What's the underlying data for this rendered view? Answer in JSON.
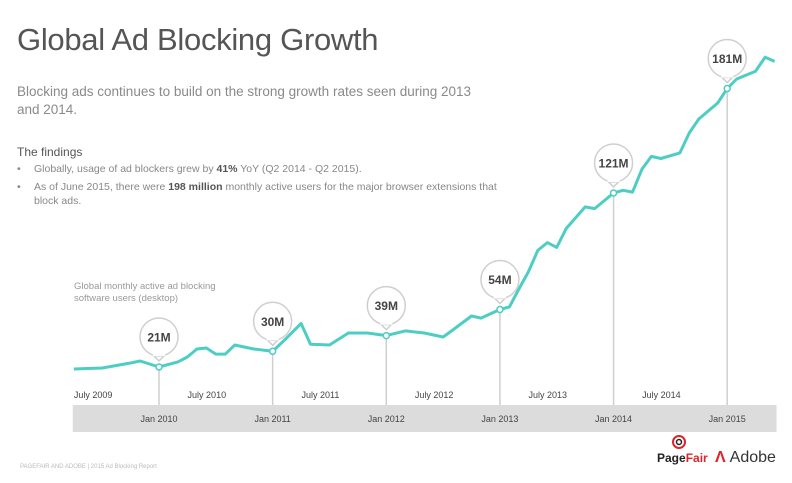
{
  "title": "Global Ad Blocking Growth",
  "subtitle": "Blocking ads continues to build on the strong growth rates seen during 2013 and 2014.",
  "findings": {
    "heading": "The findings",
    "items": [
      {
        "pre": "Globally, usage of ad blockers grew by ",
        "bold": "41%",
        "post": " YoY (Q2 2014 - Q2 2015)."
      },
      {
        "pre": "As of June 2015, there were ",
        "bold": "198 million",
        "post": " monthly active users for the major browser extensions that block ads."
      }
    ]
  },
  "footer": "PAGEFAIR AND ADOBE | 2015 Ad Blocking Report",
  "logos": {
    "pagefair_a": "Page",
    "pagefair_b": "Fair",
    "adobe": "Adobe"
  },
  "colors": {
    "line": "#4ecdc4",
    "band": "#dcdcdc",
    "callout": "#cfcfcf"
  },
  "chart_data": {
    "type": "line",
    "title": "",
    "series_label": "Global monthly active ad blocking software users (desktop)",
    "xlim": [
      "2009-04",
      "2015-06"
    ],
    "ylim": [
      0,
      200
    ],
    "unit": "M",
    "grid": false,
    "x_ticks_top": [
      "July 2009",
      "July 2010",
      "July 2011",
      "July 2012",
      "July 2013",
      "July 2014"
    ],
    "x_ticks_bottom": [
      "Jan 2010",
      "Jan 2011",
      "Jan 2012",
      "Jan 2013",
      "Jan 2014",
      "Jan 2015"
    ],
    "callouts": [
      {
        "date": "2010-01",
        "value": 21,
        "label": "21M"
      },
      {
        "date": "2011-01",
        "value": 30,
        "label": "30M"
      },
      {
        "date": "2012-01",
        "value": 39,
        "label": "39M"
      },
      {
        "date": "2013-01",
        "value": 54,
        "label": "54M"
      },
      {
        "date": "2014-01",
        "value": 121,
        "label": "121M"
      },
      {
        "date": "2015-01",
        "value": 181,
        "label": "181M"
      }
    ],
    "points": [
      [
        "2009-04",
        19.8
      ],
      [
        "2009-07",
        20.4
      ],
      [
        "2009-10",
        23.3
      ],
      [
        "2009-11",
        24.4
      ],
      [
        "2010-01",
        21
      ],
      [
        "2010-03",
        23.9
      ],
      [
        "2010-04",
        26.7
      ],
      [
        "2010-05",
        31.3
      ],
      [
        "2010-06",
        31.9
      ],
      [
        "2010-07",
        28.4
      ],
      [
        "2010-08",
        28.4
      ],
      [
        "2010-09",
        33.6
      ],
      [
        "2010-11",
        31.3
      ],
      [
        "2011-01",
        30
      ],
      [
        "2011-02",
        35.1
      ],
      [
        "2011-04",
        46
      ],
      [
        "2011-05",
        34
      ],
      [
        "2011-07",
        33.6
      ],
      [
        "2011-09",
        40.5
      ],
      [
        "2011-11",
        40.5
      ],
      [
        "2012-01",
        39
      ],
      [
        "2012-03",
        41.7
      ],
      [
        "2012-05",
        40.5
      ],
      [
        "2012-07",
        38.2
      ],
      [
        "2012-08",
        42.2
      ],
      [
        "2012-10",
        50.3
      ],
      [
        "2012-11",
        49.1
      ],
      [
        "2013-01",
        54
      ],
      [
        "2013-02",
        55.5
      ],
      [
        "2013-03",
        65.8
      ],
      [
        "2013-04",
        75.6
      ],
      [
        "2013-05",
        88
      ],
      [
        "2013-06",
        92.5
      ],
      [
        "2013-07",
        89.7
      ],
      [
        "2013-08",
        100.6
      ],
      [
        "2013-10",
        113
      ],
      [
        "2013-11",
        112
      ],
      [
        "2014-01",
        121
      ],
      [
        "2014-02",
        122.5
      ],
      [
        "2014-03",
        121.5
      ],
      [
        "2014-04",
        134.7
      ],
      [
        "2014-05",
        142
      ],
      [
        "2014-06",
        140.8
      ],
      [
        "2014-08",
        144
      ],
      [
        "2014-09",
        155.5
      ],
      [
        "2014-10",
        163.5
      ],
      [
        "2014-12",
        172.7
      ],
      [
        "2015-01",
        181
      ],
      [
        "2015-02",
        186.5
      ],
      [
        "2015-04",
        191
      ],
      [
        "2015-05",
        199
      ],
      [
        "2015-06",
        196.6
      ]
    ]
  }
}
